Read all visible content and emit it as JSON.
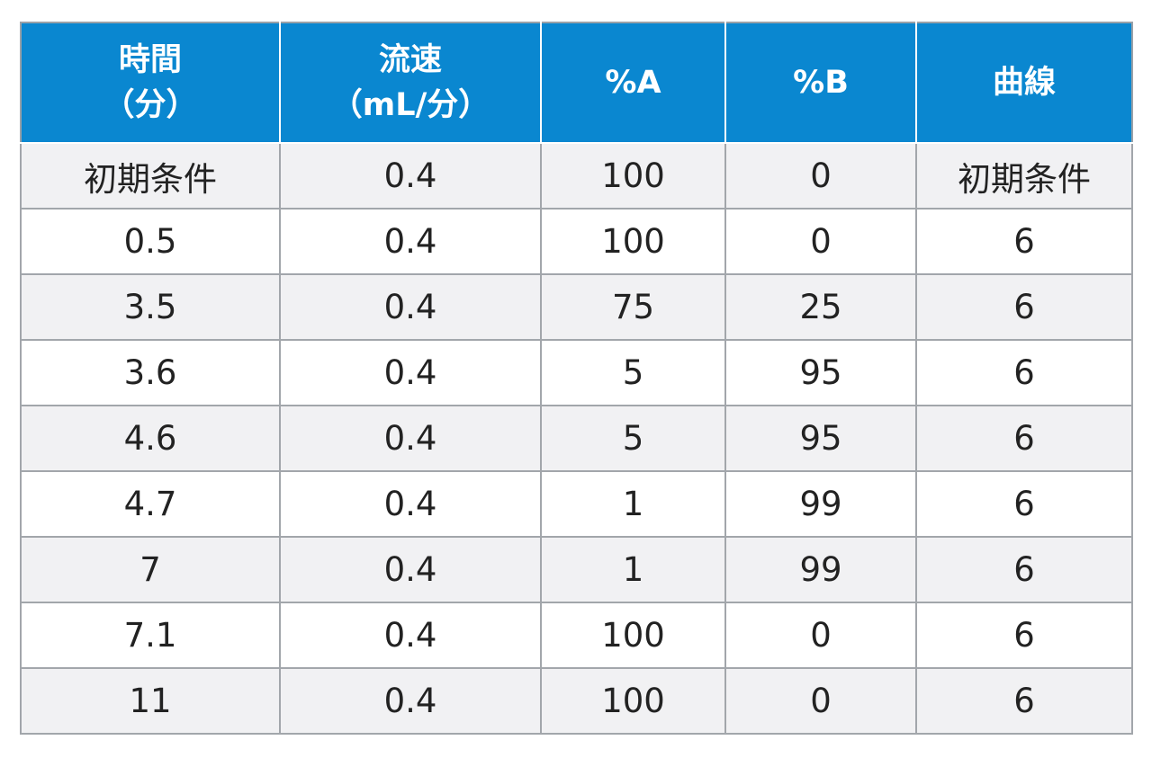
{
  "table": {
    "header_bg": "#0a87d0",
    "row_alt_bg": "#f1f1f3",
    "headers": [
      "時間\n（分）",
      "流速\n（mL/分）",
      "%A",
      "%B",
      "曲線"
    ],
    "rows": [
      [
        "初期条件",
        "0.4",
        "100",
        "0",
        "初期条件"
      ],
      [
        "0.5",
        "0.4",
        "100",
        "0",
        "6"
      ],
      [
        "3.5",
        "0.4",
        "75",
        "25",
        "6"
      ],
      [
        "3.6",
        "0.4",
        "5",
        "95",
        "6"
      ],
      [
        "4.6",
        "0.4",
        "5",
        "95",
        "6"
      ],
      [
        "4.7",
        "0.4",
        "1",
        "99",
        "6"
      ],
      [
        "7",
        "0.4",
        "1",
        "99",
        "6"
      ],
      [
        "7.1",
        "0.4",
        "100",
        "0",
        "6"
      ],
      [
        "11",
        "0.4",
        "100",
        "0",
        "6"
      ]
    ]
  }
}
